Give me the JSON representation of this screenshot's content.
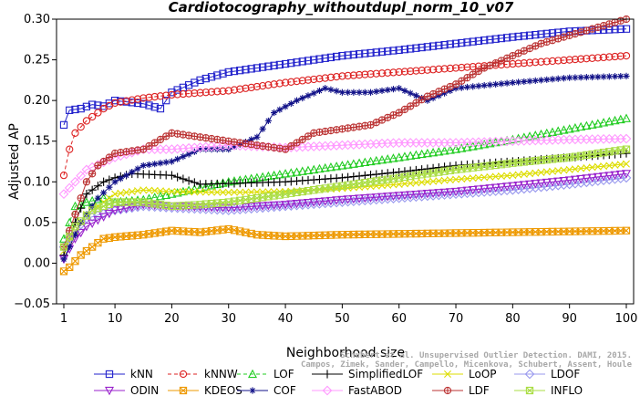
{
  "chart_data": {
    "type": "line",
    "title": "Cardiotocography_withoutdupl_norm_10_v07",
    "xlabel": "Neighborhood size",
    "ylabel": "Adjusted AP",
    "xlim": [
      1,
      100
    ],
    "ylim": [
      -0.05,
      0.3
    ],
    "xticks": [
      "1",
      "10",
      "20",
      "30",
      "40",
      "50",
      "60",
      "70",
      "80",
      "90",
      "100"
    ],
    "yticks": [
      "−0.05",
      "0.00",
      "0.05",
      "0.10",
      "0.15",
      "0.20",
      "0.25",
      "0.30"
    ],
    "grid": false,
    "legend_position": "bottom",
    "watermark": [
      "Schubert et al. Unsupervised Outlier Detection. DAMI, 2015.",
      "Campos, Zimek, Sander, Campello, Micenkova, Schubert, Assent, Houle"
    ],
    "series": [
      {
        "name": "kNN",
        "color": "#2222cc",
        "marker": "square",
        "dash": "solid",
        "points": [
          [
            1,
            0.17
          ],
          [
            2,
            0.188
          ],
          [
            4,
            0.19
          ],
          [
            6,
            0.195
          ],
          [
            8,
            0.193
          ],
          [
            10,
            0.2
          ],
          [
            15,
            0.196
          ],
          [
            18,
            0.19
          ],
          [
            20,
            0.21
          ],
          [
            25,
            0.225
          ],
          [
            30,
            0.235
          ],
          [
            40,
            0.245
          ],
          [
            50,
            0.255
          ],
          [
            60,
            0.262
          ],
          [
            70,
            0.27
          ],
          [
            80,
            0.278
          ],
          [
            90,
            0.285
          ],
          [
            100,
            0.288
          ]
        ]
      },
      {
        "name": "kNNW",
        "color": "#dd2222",
        "marker": "circle",
        "dash": "dashed",
        "points": [
          [
            1,
            0.108
          ],
          [
            2,
            0.14
          ],
          [
            3,
            0.16
          ],
          [
            5,
            0.175
          ],
          [
            8,
            0.19
          ],
          [
            10,
            0.197
          ],
          [
            15,
            0.203
          ],
          [
            20,
            0.207
          ],
          [
            30,
            0.212
          ],
          [
            40,
            0.222
          ],
          [
            50,
            0.23
          ],
          [
            60,
            0.235
          ],
          [
            70,
            0.24
          ],
          [
            80,
            0.245
          ],
          [
            90,
            0.25
          ],
          [
            100,
            0.255
          ]
        ]
      },
      {
        "name": "LOF",
        "color": "#22cc22",
        "marker": "triangle-up",
        "dash": "dashed",
        "points": [
          [
            1,
            0.03
          ],
          [
            3,
            0.07
          ],
          [
            5,
            0.075
          ],
          [
            8,
            0.08
          ],
          [
            10,
            0.075
          ],
          [
            15,
            0.078
          ],
          [
            20,
            0.085
          ],
          [
            30,
            0.1
          ],
          [
            40,
            0.11
          ],
          [
            50,
            0.12
          ],
          [
            60,
            0.13
          ],
          [
            70,
            0.14
          ],
          [
            80,
            0.152
          ],
          [
            90,
            0.165
          ],
          [
            100,
            0.178
          ]
        ]
      },
      {
        "name": "SimplifiedLOF",
        "color": "#000000",
        "marker": "plus",
        "dash": "solid",
        "points": [
          [
            1,
            0.01
          ],
          [
            3,
            0.05
          ],
          [
            5,
            0.085
          ],
          [
            8,
            0.1
          ],
          [
            10,
            0.105
          ],
          [
            13,
            0.11
          ],
          [
            20,
            0.108
          ],
          [
            25,
            0.097
          ],
          [
            30,
            0.098
          ],
          [
            40,
            0.1
          ],
          [
            50,
            0.105
          ],
          [
            60,
            0.112
          ],
          [
            70,
            0.12
          ],
          [
            80,
            0.125
          ],
          [
            90,
            0.13
          ],
          [
            100,
            0.135
          ]
        ]
      },
      {
        "name": "LoOP",
        "color": "#dddd00",
        "marker": "x",
        "dash": "solid",
        "points": [
          [
            1,
            0.015
          ],
          [
            3,
            0.04
          ],
          [
            5,
            0.06
          ],
          [
            8,
            0.075
          ],
          [
            10,
            0.085
          ],
          [
            15,
            0.09
          ],
          [
            20,
            0.088
          ],
          [
            30,
            0.087
          ],
          [
            40,
            0.088
          ],
          [
            50,
            0.092
          ],
          [
            60,
            0.097
          ],
          [
            70,
            0.103
          ],
          [
            80,
            0.108
          ],
          [
            90,
            0.115
          ],
          [
            100,
            0.122
          ]
        ]
      },
      {
        "name": "LDOF",
        "color": "#9999ee",
        "marker": "diamond",
        "dash": "solid",
        "points": [
          [
            1,
            0.02
          ],
          [
            3,
            0.04
          ],
          [
            5,
            0.055
          ],
          [
            10,
            0.065
          ],
          [
            15,
            0.07
          ],
          [
            20,
            0.068
          ],
          [
            30,
            0.065
          ],
          [
            40,
            0.07
          ],
          [
            50,
            0.075
          ],
          [
            60,
            0.08
          ],
          [
            70,
            0.085
          ],
          [
            80,
            0.09
          ],
          [
            90,
            0.097
          ],
          [
            100,
            0.105
          ]
        ]
      },
      {
        "name": "ODIN",
        "color": "#9922cc",
        "marker": "triangle-down",
        "dash": "solid",
        "points": [
          [
            1,
            0.005
          ],
          [
            3,
            0.03
          ],
          [
            5,
            0.045
          ],
          [
            10,
            0.065
          ],
          [
            15,
            0.072
          ],
          [
            20,
            0.07
          ],
          [
            30,
            0.068
          ],
          [
            40,
            0.072
          ],
          [
            50,
            0.078
          ],
          [
            60,
            0.083
          ],
          [
            70,
            0.088
          ],
          [
            80,
            0.095
          ],
          [
            90,
            0.102
          ],
          [
            100,
            0.11
          ]
        ]
      },
      {
        "name": "KDEOS",
        "color": "#ee9900",
        "marker": "square-x",
        "dash": "solid",
        "points": [
          [
            1,
            -0.01
          ],
          [
            2,
            -0.005
          ],
          [
            4,
            0.01
          ],
          [
            6,
            0.02
          ],
          [
            8,
            0.03
          ],
          [
            10,
            0.032
          ],
          [
            15,
            0.035
          ],
          [
            20,
            0.04
          ],
          [
            25,
            0.038
          ],
          [
            30,
            0.042
          ],
          [
            35,
            0.035
          ],
          [
            40,
            0.033
          ],
          [
            50,
            0.035
          ],
          [
            60,
            0.036
          ],
          [
            70,
            0.037
          ],
          [
            80,
            0.038
          ],
          [
            90,
            0.039
          ],
          [
            100,
            0.04
          ]
        ]
      },
      {
        "name": "COF",
        "color": "#111188",
        "marker": "asterisk",
        "dash": "solid",
        "points": [
          [
            1,
            0.005
          ],
          [
            4,
            0.05
          ],
          [
            7,
            0.08
          ],
          [
            10,
            0.1
          ],
          [
            15,
            0.12
          ],
          [
            20,
            0.125
          ],
          [
            25,
            0.14
          ],
          [
            30,
            0.14
          ],
          [
            35,
            0.155
          ],
          [
            38,
            0.185
          ],
          [
            42,
            0.2
          ],
          [
            47,
            0.215
          ],
          [
            50,
            0.21
          ],
          [
            55,
            0.21
          ],
          [
            60,
            0.215
          ],
          [
            65,
            0.2
          ],
          [
            70,
            0.215
          ],
          [
            80,
            0.222
          ],
          [
            90,
            0.228
          ],
          [
            100,
            0.23
          ]
        ]
      },
      {
        "name": "FastABOD",
        "color": "#ff99ff",
        "marker": "diamond",
        "dash": "solid",
        "points": [
          [
            1,
            0.085
          ],
          [
            5,
            0.115
          ],
          [
            10,
            0.13
          ],
          [
            15,
            0.14
          ],
          [
            20,
            0.14
          ],
          [
            30,
            0.145
          ],
          [
            40,
            0.142
          ],
          [
            50,
            0.145
          ],
          [
            60,
            0.148
          ],
          [
            70,
            0.148
          ],
          [
            80,
            0.15
          ],
          [
            90,
            0.152
          ],
          [
            100,
            0.153
          ]
        ]
      },
      {
        "name": "LDF",
        "color": "#bb3333",
        "marker": "circle-plus",
        "dash": "solid",
        "points": [
          [
            1,
            0.02
          ],
          [
            3,
            0.06
          ],
          [
            5,
            0.1
          ],
          [
            7,
            0.12
          ],
          [
            10,
            0.135
          ],
          [
            15,
            0.14
          ],
          [
            20,
            0.16
          ],
          [
            25,
            0.155
          ],
          [
            30,
            0.15
          ],
          [
            35,
            0.145
          ],
          [
            40,
            0.14
          ],
          [
            45,
            0.16
          ],
          [
            50,
            0.165
          ],
          [
            55,
            0.17
          ],
          [
            60,
            0.185
          ],
          [
            65,
            0.205
          ],
          [
            70,
            0.22
          ],
          [
            75,
            0.24
          ],
          [
            80,
            0.255
          ],
          [
            85,
            0.27
          ],
          [
            90,
            0.28
          ],
          [
            95,
            0.29
          ],
          [
            100,
            0.3
          ]
        ]
      },
      {
        "name": "INFLO",
        "color": "#aadd44",
        "marker": "square-x",
        "dash": "solid",
        "points": [
          [
            1,
            0.02
          ],
          [
            3,
            0.045
          ],
          [
            6,
            0.065
          ],
          [
            10,
            0.075
          ],
          [
            15,
            0.075
          ],
          [
            20,
            0.07
          ],
          [
            25,
            0.072
          ],
          [
            30,
            0.075
          ],
          [
            40,
            0.085
          ],
          [
            50,
            0.095
          ],
          [
            60,
            0.105
          ],
          [
            70,
            0.115
          ],
          [
            80,
            0.123
          ],
          [
            90,
            0.13
          ],
          [
            100,
            0.14
          ]
        ]
      }
    ]
  }
}
